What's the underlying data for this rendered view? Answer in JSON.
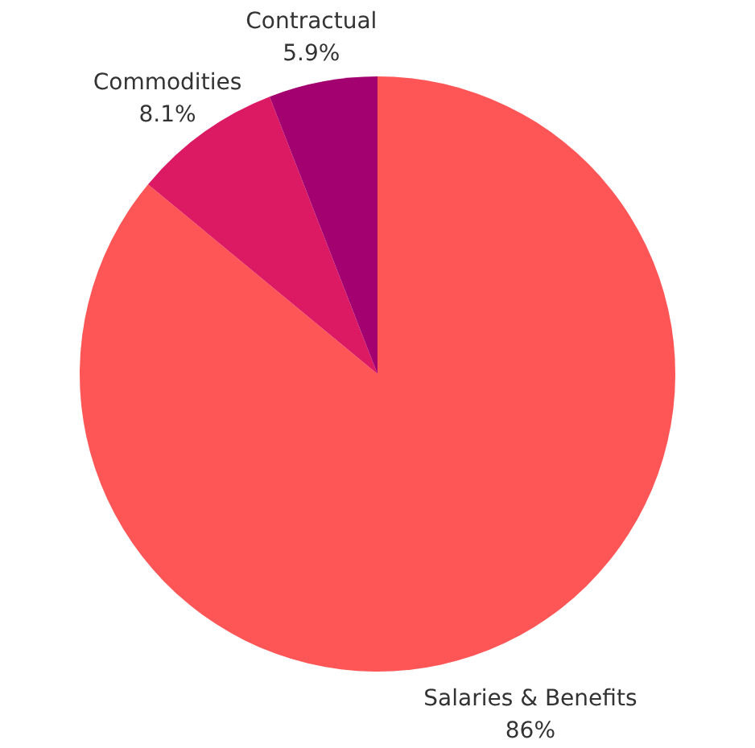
{
  "chart_data": {
    "type": "pie",
    "categories": [
      "Salaries & Benefits",
      "Commodities",
      "Contractual"
    ],
    "values": [
      86,
      8.1,
      5.9
    ],
    "value_labels": [
      "86%",
      "8.1%",
      "5.9%"
    ],
    "colors": [
      "#fe5656",
      "#dc1a64",
      "#a30070"
    ]
  }
}
